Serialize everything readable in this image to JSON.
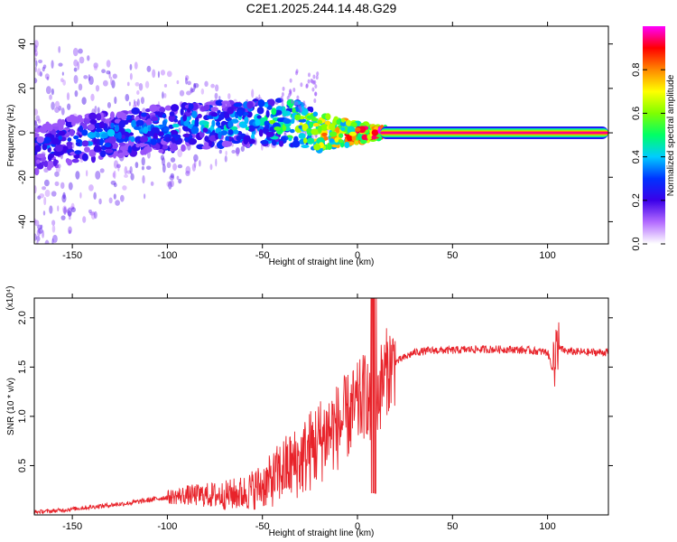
{
  "title": "C2E1.2025.244.14.48.G29",
  "chart_data": [
    {
      "type": "heatmap",
      "xlabel": "Height of straight line (km)",
      "ylabel": "Frequency (Hz)",
      "xlim": [
        -170,
        132
      ],
      "ylim": [
        -50,
        48
      ],
      "xticks": [
        -150,
        -100,
        -50,
        0,
        50,
        100
      ],
      "yticks": [
        -40,
        -20,
        0,
        20,
        40
      ],
      "colorbar": {
        "label": "Normalized spectral amplitude",
        "range": [
          0,
          1
        ],
        "ticks": [
          0.0,
          0.2,
          0.4,
          0.6,
          0.8
        ],
        "tick_labels": [
          "0.0",
          "0.2",
          "0.4",
          "0.6",
          "0.8"
        ],
        "colors": [
          "#ffffff",
          "#b36bff",
          "#3b00e8",
          "#0033ff",
          "#00ccff",
          "#00ff66",
          "#7fff00",
          "#ffff00",
          "#ff8800",
          "#ff0000",
          "#ff00ff"
        ]
      },
      "ridge": [
        {
          "x": -170,
          "y": -8,
          "a": 0.3
        },
        {
          "x": -150,
          "y": -3,
          "a": 0.35
        },
        {
          "x": -120,
          "y": 0,
          "a": 0.38
        },
        {
          "x": -90,
          "y": 3,
          "a": 0.4
        },
        {
          "x": -60,
          "y": 4,
          "a": 0.45
        },
        {
          "x": -40,
          "y": 5,
          "a": 0.55
        },
        {
          "x": -30,
          "y": 4,
          "a": 0.65
        },
        {
          "x": -20,
          "y": 0,
          "a": 0.75
        },
        {
          "x": 0,
          "y": 0,
          "a": 0.85
        },
        {
          "x": 15,
          "y": 0,
          "a": 0.95
        },
        {
          "x": 132,
          "y": 0,
          "a": 0.97
        }
      ]
    },
    {
      "type": "line",
      "xlabel": "Height of straight line (km)",
      "ylabel": "SNR (10 * v/v)",
      "y_multiplier": "(x10⁴)",
      "xlim": [
        -170,
        132
      ],
      "ylim": [
        0,
        2.2
      ],
      "xticks": [
        -150,
        -100,
        -50,
        0,
        50,
        100
      ],
      "yticks": [
        0.5,
        1.0,
        1.5,
        2.0
      ],
      "ytick_labels": [
        "0.5",
        "1.0",
        "1.5",
        "2.0"
      ],
      "color": "#e8232a",
      "series": [
        {
          "name": "SNR",
          "x": [
            -170,
            -160,
            -150,
            -140,
            -130,
            -120,
            -110,
            -100,
            -90,
            -80,
            -70,
            -60,
            -50,
            -45,
            -40,
            -35,
            -30,
            -25,
            -20,
            -15,
            -10,
            -5,
            0,
            5,
            8,
            10,
            15,
            20,
            25,
            30,
            40,
            50,
            60,
            70,
            80,
            90,
            100,
            104,
            105,
            110,
            120,
            132
          ],
          "values": [
            0.03,
            0.04,
            0.06,
            0.08,
            0.1,
            0.12,
            0.15,
            0.18,
            0.2,
            0.2,
            0.2,
            0.22,
            0.3,
            0.35,
            0.45,
            0.5,
            0.55,
            0.65,
            0.75,
            0.85,
            0.9,
            1.0,
            1.1,
            1.25,
            0.8,
            1.2,
            1.45,
            1.55,
            1.6,
            1.65,
            1.67,
            1.67,
            1.68,
            1.68,
            1.68,
            1.67,
            1.65,
            1.4,
            1.7,
            1.66,
            1.65,
            1.65
          ]
        }
      ]
    }
  ]
}
